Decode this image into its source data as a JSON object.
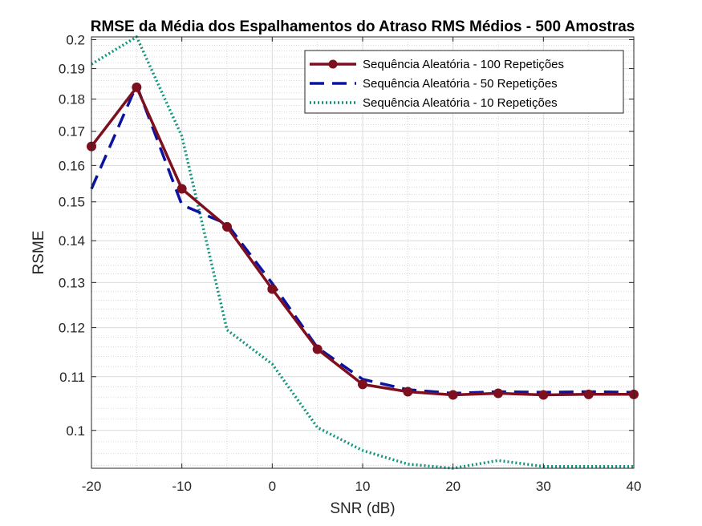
{
  "chart_data": {
    "type": "line",
    "title": "RMSE da Média dos Espalhamentos do Atraso RMS Médios - 500 Amostras",
    "xlabel": "SNR (dB)",
    "ylabel": "RSME",
    "xlim": [
      -20,
      40
    ],
    "ylim": [
      0.0935,
      0.201
    ],
    "yscale": "log",
    "grid": true,
    "minor_grid": true,
    "legend_position": "top-right",
    "x_ticks": [
      -20,
      -10,
      0,
      10,
      20,
      30,
      40
    ],
    "y_ticks": [
      0.1,
      0.11,
      0.12,
      0.13,
      0.14,
      0.15,
      0.16,
      0.17,
      0.18,
      0.19,
      0.2
    ],
    "y_tick_labels": [
      "0.1",
      "0.11",
      "0.12",
      "0.13",
      "0.14",
      "0.15",
      "0.16",
      "0.17",
      "0.18",
      "0.19",
      "0.2"
    ],
    "x_tick_labels": [
      "-20",
      "-10",
      "0",
      "10",
      "20",
      "30",
      "40"
    ],
    "series": [
      {
        "name": "Sequência Aleatória - 100 Repetições",
        "color": "#7e0f1f",
        "style": "solid-markers",
        "x": [
          -20,
          -15,
          -10,
          -5,
          0,
          5,
          10,
          15,
          20,
          25,
          30,
          35,
          40
        ],
        "y": [
          0.1655,
          0.1838,
          0.1535,
          0.1435,
          0.1285,
          0.1155,
          0.1085,
          0.1071,
          0.1065,
          0.1068,
          0.1065,
          0.1066,
          0.1066
        ]
      },
      {
        "name": "Sequência Aleatória - 50 Repetições",
        "color": "#0a14a0",
        "style": "dashed",
        "x": [
          -20,
          -15,
          -10,
          -5,
          0,
          5,
          10,
          15,
          20,
          25,
          30,
          35,
          40
        ],
        "y": [
          0.1535,
          0.1845,
          0.1492,
          0.1442,
          0.1298,
          0.1158,
          0.1095,
          0.1075,
          0.1068,
          0.1071,
          0.107,
          0.1071,
          0.107
        ]
      },
      {
        "name": "Sequência Aleatória - 10 Repetições",
        "color": "#10967f",
        "style": "dotted",
        "x": [
          -20,
          -15,
          -10,
          -5,
          0,
          5,
          10,
          15,
          20,
          25,
          30,
          35,
          40
        ],
        "y": [
          0.1915,
          0.2015,
          0.1685,
          0.1195,
          0.1125,
          0.1005,
          0.0965,
          0.0942,
          0.0935,
          0.0948,
          0.0938,
          0.0938,
          0.0938
        ]
      }
    ]
  }
}
